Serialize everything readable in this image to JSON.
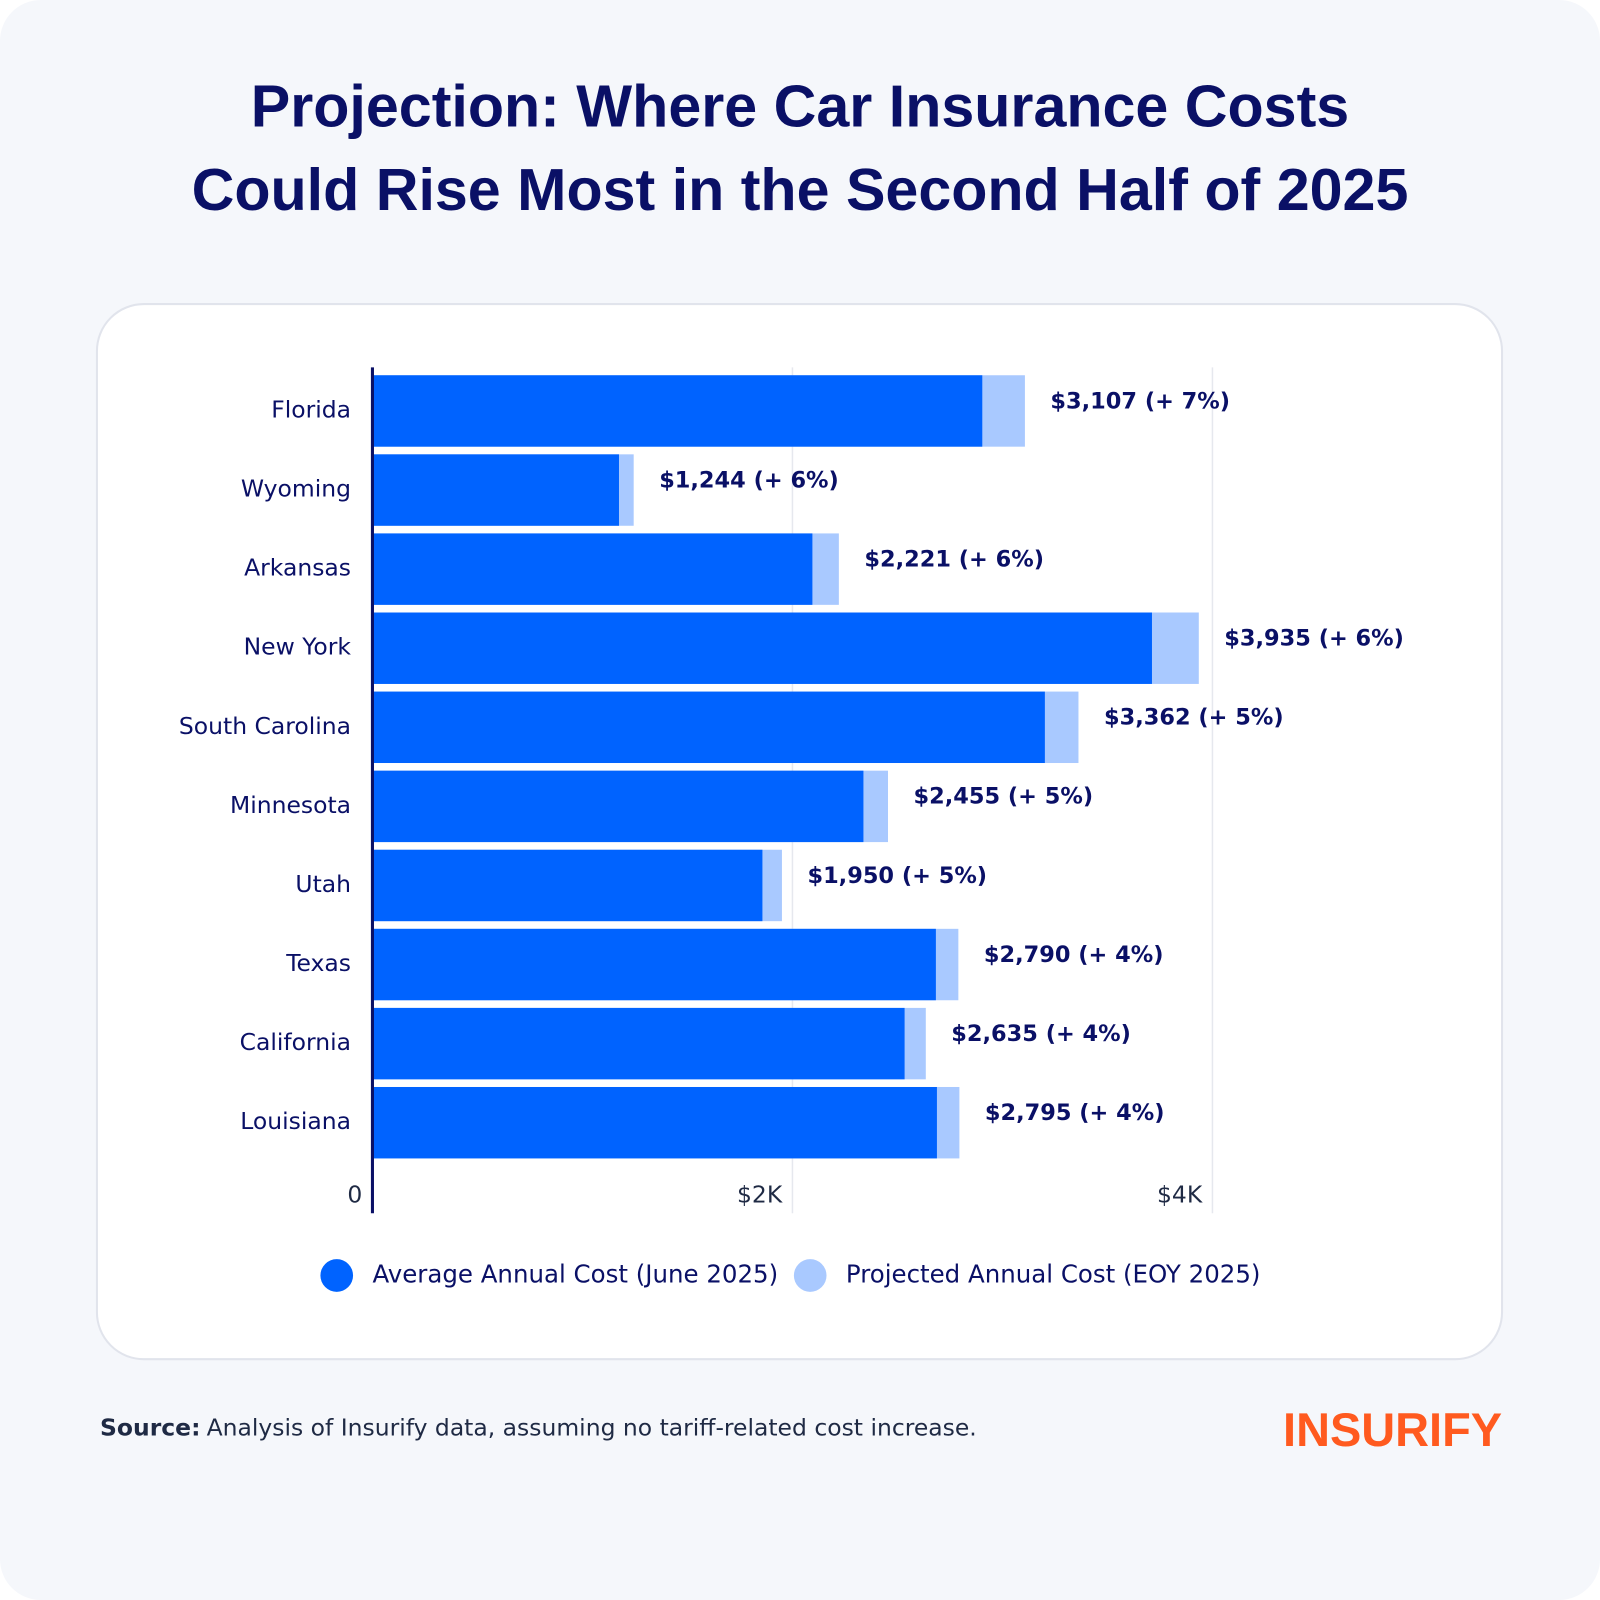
{
  "chart_data": {
    "type": "bar",
    "orientation": "horizontal",
    "barmode": "overlay",
    "title": "Projection: Where Car Insurance Costs Could Rise Most in the Second Half of 2025",
    "categories": [
      "Florida",
      "Wyoming",
      "Arkansas",
      "New York",
      "South Carolina",
      "Minnesota",
      "Utah",
      "Texas",
      "California",
      "Louisiana"
    ],
    "series": [
      {
        "name": "Projected Annual Cost (EOY 2025)",
        "color": "#a9c9ff",
        "values": [
          3107,
          1244,
          2221,
          3935,
          3362,
          2455,
          1950,
          2790,
          2635,
          2795
        ],
        "value_labels": [
          "$3,107 (+ 7%)",
          "$1,244 (+ 6%)",
          "$2,221 (+ 6%)",
          "$3,935 (+ 6%)",
          "$3,362 (+ 5%)",
          "$2,455 (+ 5%)",
          "$1,950 (+ 5%)",
          "$2,790 (+ 4%)",
          "$2,635 (+ 4%)",
          "$2,795 (+ 4%)"
        ]
      },
      {
        "name": "Average Annual Cost (June 2025)",
        "color": "#0063ff",
        "values": [
          2904,
          1174,
          2095,
          3712,
          3202,
          2338,
          1857,
          2683,
          2534,
          2688
        ]
      }
    ],
    "legend_order": [
      1,
      0
    ],
    "xlim": [
      0,
      5000
    ],
    "xticks": [
      0,
      {
        "value": 2000,
        "label": "$2K"
      },
      {
        "value": 4000,
        "label": "$4K"
      }
    ],
    "grid": true,
    "source_label": "Source:",
    "source": "Analysis of Insurify data, assuming no tariff-related cost increase.",
    "brand": "INSURIFY"
  }
}
